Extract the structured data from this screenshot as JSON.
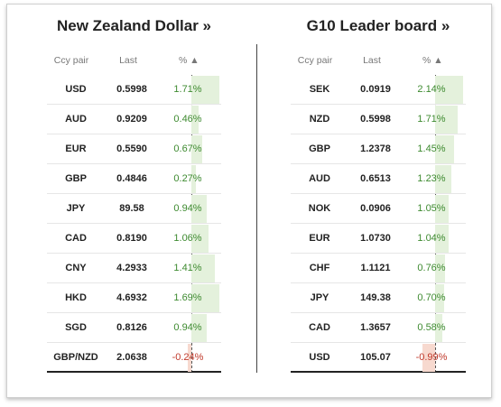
{
  "left": {
    "title": "New Zealand Dollar »",
    "headers": {
      "pair": "Ccy pair",
      "last": "Last",
      "pct": "% ▲"
    },
    "rows": [
      {
        "ccy": "USD",
        "last": "0.5998",
        "pct": "1.71%",
        "value": 1.71
      },
      {
        "ccy": "AUD",
        "last": "0.9209",
        "pct": "0.46%",
        "value": 0.46
      },
      {
        "ccy": "EUR",
        "last": "0.5590",
        "pct": "0.67%",
        "value": 0.67
      },
      {
        "ccy": "GBP",
        "last": "0.4846",
        "pct": "0.27%",
        "value": 0.27
      },
      {
        "ccy": "JPY",
        "last": "89.58",
        "pct": "0.94%",
        "value": 0.94
      },
      {
        "ccy": "CAD",
        "last": "0.8190",
        "pct": "1.06%",
        "value": 1.06
      },
      {
        "ccy": "CNY",
        "last": "4.2933",
        "pct": "1.41%",
        "value": 1.41
      },
      {
        "ccy": "HKD",
        "last": "4.6932",
        "pct": "1.69%",
        "value": 1.69
      },
      {
        "ccy": "SGD",
        "last": "0.8126",
        "pct": "0.94%",
        "value": 0.94
      },
      {
        "ccy": "GBP/NZD",
        "last": "2.0638",
        "pct": "-0.24%",
        "value": -0.24
      }
    ]
  },
  "right": {
    "title": "G10 Leader board »",
    "headers": {
      "pair": "Ccy pair",
      "last": "Last",
      "pct": "% ▲"
    },
    "rows": [
      {
        "ccy": "SEK",
        "last": "0.0919",
        "pct": "2.14%",
        "value": 2.14
      },
      {
        "ccy": "NZD",
        "last": "0.5998",
        "pct": "1.71%",
        "value": 1.71
      },
      {
        "ccy": "GBP",
        "last": "1.2378",
        "pct": "1.45%",
        "value": 1.45
      },
      {
        "ccy": "AUD",
        "last": "0.6513",
        "pct": "1.23%",
        "value": 1.23
      },
      {
        "ccy": "NOK",
        "last": "0.0906",
        "pct": "1.05%",
        "value": 1.05
      },
      {
        "ccy": "EUR",
        "last": "1.0730",
        "pct": "1.04%",
        "value": 1.04
      },
      {
        "ccy": "CHF",
        "last": "1.1121",
        "pct": "0.76%",
        "value": 0.76
      },
      {
        "ccy": "JPY",
        "last": "149.38",
        "pct": "0.70%",
        "value": 0.7
      },
      {
        "ccy": "CAD",
        "last": "1.3657",
        "pct": "0.58%",
        "value": 0.58
      },
      {
        "ccy": "USD",
        "last": "105.07",
        "pct": "-0.99%",
        "value": -0.99
      }
    ]
  },
  "colors": {
    "positive_bar": "#e4f1dc",
    "negative_bar": "#f7d9cf",
    "positive_text": "#3d8a2f",
    "negative_text": "#c0392b"
  }
}
